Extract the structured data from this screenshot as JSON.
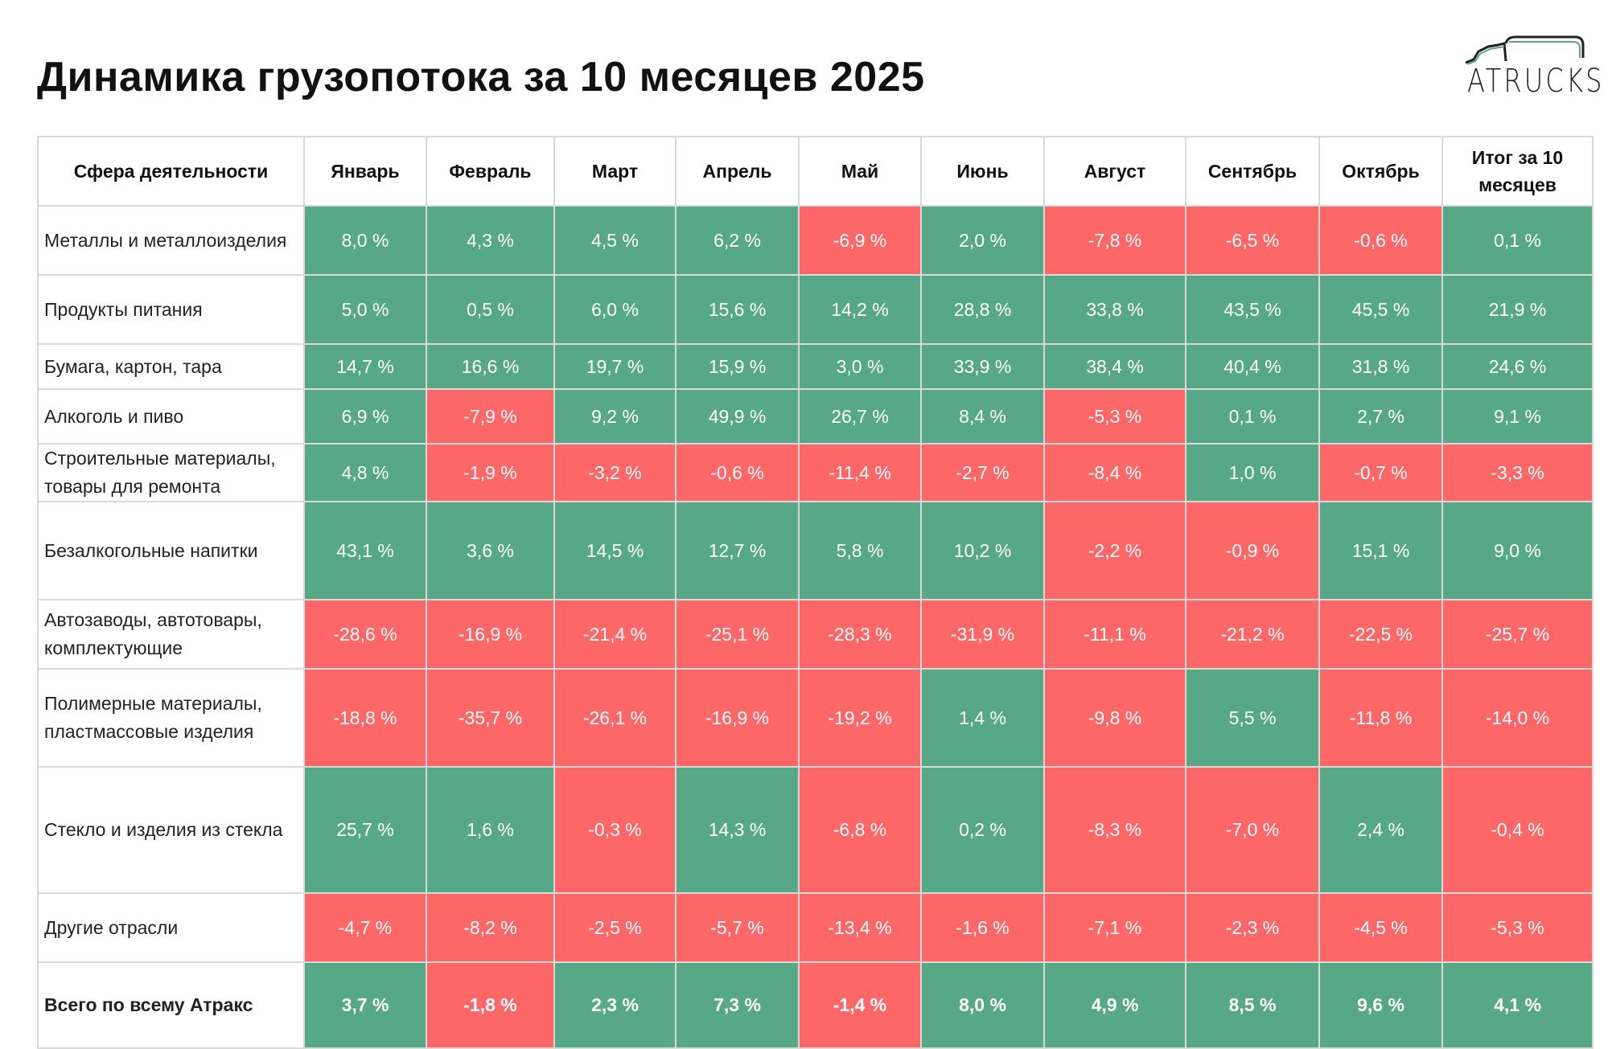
{
  "title": "Динамика грузопотока за 10 месяцев 2025",
  "logo": {
    "text": "ATRUCKS"
  },
  "colors": {
    "positive": "#57a886",
    "negative": "#fd6767"
  },
  "table": {
    "headers": [
      "Сфера деятельности",
      "Январь",
      "Февраль",
      "Март",
      "Апрель",
      "Май",
      "Июнь",
      "Август",
      "Сентябрь",
      "Октябрь",
      "Итог за 10 месяцев"
    ],
    "rows": [
      {
        "label": "Металлы и металлоизделия",
        "values": [
          "8,0 %",
          "4,3 %",
          "4,5 %",
          "6,2 %",
          "-6,9 %",
          "2,0 %",
          "-7,8 %",
          "-6,5 %",
          "-0,6 %",
          "0,1 %"
        ]
      },
      {
        "label": "Продукты питания",
        "values": [
          "5,0 %",
          "0,5 %",
          "6,0 %",
          "15,6 %",
          "14,2 %",
          "28,8 %",
          "33,8 %",
          "43,5 %",
          "45,5 %",
          "21,9 %"
        ]
      },
      {
        "label": "Бумага, картон, тара",
        "values": [
          "14,7 %",
          "16,6 %",
          "19,7 %",
          "15,9 %",
          "3,0 %",
          "33,9 %",
          "38,4 %",
          "40,4 %",
          "31,8 %",
          "24,6 %"
        ]
      },
      {
        "label": "Алкоголь и пиво",
        "values": [
          "6,9 %",
          "-7,9 %",
          "9,2 %",
          "49,9 %",
          "26,7 %",
          "8,4 %",
          "-5,3 %",
          "0,1 %",
          "2,7 %",
          "9,1 %"
        ]
      },
      {
        "label": "Строительные материалы, товары для ремонта",
        "values": [
          "4,8 %",
          "-1,9 %",
          "-3,2 %",
          "-0,6 %",
          "-11,4 %",
          "-2,7 %",
          "-8,4 %",
          "1,0 %",
          "-0,7 %",
          "-3,3 %"
        ]
      },
      {
        "label": "Безалкогольные напитки",
        "values": [
          "43,1 %",
          "3,6 %",
          "14,5 %",
          "12,7 %",
          "5,8 %",
          "10,2 %",
          "-2,2 %",
          "-0,9 %",
          "15,1 %",
          "9,0 %"
        ]
      },
      {
        "label": "Автозаводы, автотовары, комплектующие",
        "values": [
          "-28,6 %",
          "-16,9 %",
          "-21,4 %",
          "-25,1 %",
          "-28,3 %",
          "-31,9 %",
          "-11,1 %",
          "-21,2 %",
          "-22,5 %",
          "-25,7 %"
        ]
      },
      {
        "label": "Полимерные материалы, пластмассовые изделия",
        "values": [
          "-18,8 %",
          "-35,7 %",
          "-26,1 %",
          "-16,9 %",
          "-19,2 %",
          "1,4 %",
          "-9,8 %",
          "5,5 %",
          "-11,8 %",
          "-14,0 %"
        ]
      },
      {
        "label": "Стекло и изделия из стекла",
        "values": [
          "25,7 %",
          "1,6 %",
          "-0,3 %",
          "14,3 %",
          "-6,8 %",
          "0,2 %",
          "-8,3 %",
          "-7,0 %",
          "2,4 %",
          "-0,4 %"
        ]
      },
      {
        "label": "Другие отрасли",
        "values": [
          "-4,7 %",
          "-8,2 %",
          "-2,5 %",
          "-5,7 %",
          "-13,4 %",
          "-1,6 %",
          "-7,1 %",
          "-2,3 %",
          "-4,5 %",
          "-5,3 %"
        ]
      }
    ],
    "total": {
      "label": "Всего по всему Атракс",
      "values": [
        "3,7 %",
        "-1,8 %",
        "2,3 %",
        "7,3 %",
        "-1,4 %",
        "8,0 %",
        "4,9 %",
        "8,5 %",
        "9,6 %",
        "4,1 %"
      ]
    }
  }
}
